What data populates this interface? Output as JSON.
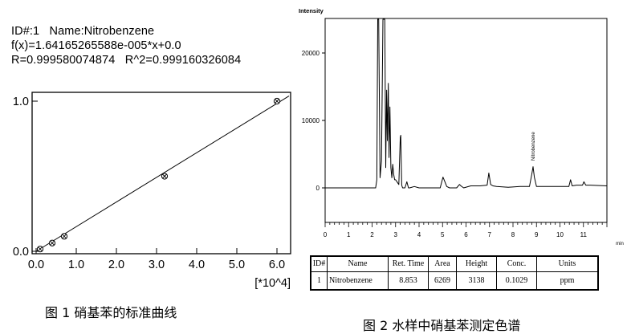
{
  "figure1": {
    "header_line1": "ID#:1   Name:Nitrobenzene",
    "header_line2": "f(x)=1.64165265588e-005*x+0.0",
    "header_line3": "R=0.999580074874   R^2=0.999160326084",
    "caption": "图 1  硝基苯的标准曲线"
  },
  "figure2": {
    "caption": "图 2  水样中硝基苯测定色谱"
  },
  "results_table": {
    "headers": [
      "ID#",
      "Name",
      "Ret. Time",
      "Area",
      "Height",
      "Conc.",
      "Units"
    ],
    "rows": [
      [
        "1",
        "Nitrobenzene",
        "8.853",
        "6269",
        "3138",
        "0.1029",
        "ppm"
      ]
    ]
  },
  "chart_data": [
    {
      "type": "scatter",
      "title": "",
      "xlabel": "",
      "x_unit_label": "[*10^4]",
      "ylabel": "",
      "xlim": [
        0,
        6.4
      ],
      "ylim": [
        0,
        1.0
      ],
      "x_ticks": [
        "0.0",
        "1.0",
        "2.0",
        "3.0",
        "4.0",
        "5.0",
        "6.0"
      ],
      "y_ticks": [
        "0.0",
        "1.0"
      ],
      "points": [
        {
          "x": 0.1,
          "y": 0.015
        },
        {
          "x": 0.4,
          "y": 0.055
        },
        {
          "x": 0.7,
          "y": 0.1
        },
        {
          "x": 3.2,
          "y": 0.5
        },
        {
          "x": 6.0,
          "y": 1.0
        }
      ],
      "fit_line": {
        "slope": 0.164165265588,
        "intercept": 0.0,
        "x_range": [
          0,
          6.3
        ]
      },
      "marker": "circle-x",
      "grid": false
    },
    {
      "type": "line",
      "title": "",
      "ylabel": "Intensity",
      "xlabel": "min",
      "xlim": [
        0,
        12
      ],
      "ylim": [
        -5000,
        25000
      ],
      "x_ticks": [
        "0",
        "1",
        "2",
        "3",
        "4",
        "5",
        "6",
        "7",
        "8",
        "9",
        "10",
        "11"
      ],
      "y_ticks": [
        "0",
        "10000",
        "20000"
      ],
      "peak_annotation": {
        "label": "Nitrobenzene",
        "x": 8.853
      },
      "series": [
        {
          "x": [
            0,
            2.15,
            2.2,
            2.24,
            2.28,
            2.34,
            2.4,
            2.46,
            2.5,
            2.54,
            2.58,
            2.62,
            2.65,
            2.69,
            2.72,
            2.76,
            2.8,
            2.84,
            2.88,
            2.92,
            2.96,
            3.0,
            3.08,
            3.14,
            3.2,
            3.22,
            3.26,
            3.3,
            3.4,
            3.48,
            3.55,
            3.6,
            3.8,
            4.0,
            4.4,
            4.9,
            5.02,
            5.1,
            5.18,
            5.3,
            5.6,
            5.72,
            5.8,
            5.9,
            6.2,
            6.6,
            6.9,
            6.97,
            7.05,
            7.15,
            7.3,
            7.8,
            8.3,
            8.7,
            8.8,
            8.853,
            8.91,
            9.0,
            9.4,
            10.0,
            10.38,
            10.45,
            10.52,
            10.7,
            10.96,
            11.02,
            11.1,
            11.3,
            12.0
          ],
          "y": [
            0,
            0,
            1200,
            25000,
            25000,
            1500,
            4000,
            25000,
            25000,
            25000,
            3000,
            14500,
            7000,
            15500,
            4500,
            12000,
            3000,
            1500,
            3500,
            2000,
            1200,
            1200,
            800,
            500,
            7500,
            7800,
            400,
            0,
            0,
            900,
            0,
            0,
            200,
            0,
            0,
            0,
            1600,
            900,
            200,
            0,
            0,
            500,
            250,
            0,
            300,
            300,
            400,
            2200,
            500,
            300,
            200,
            100,
            200,
            200,
            2000,
            3138,
            1600,
            200,
            200,
            200,
            200,
            1200,
            300,
            400,
            400,
            900,
            400,
            400,
            300
          ]
        }
      ]
    }
  ]
}
